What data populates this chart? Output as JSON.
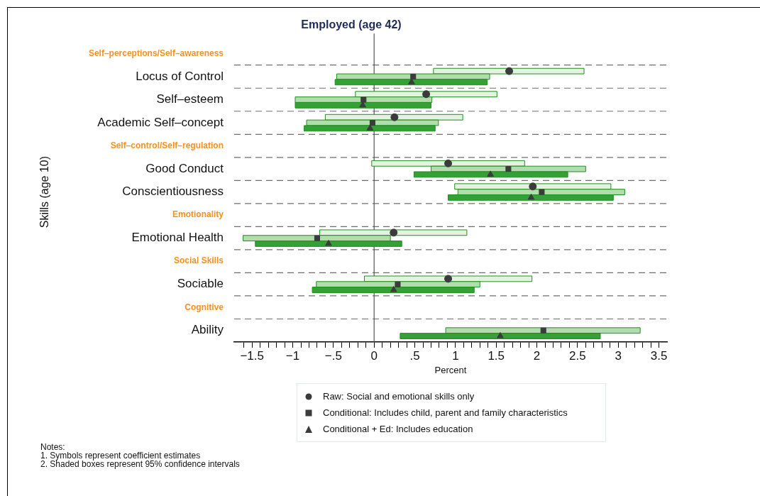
{
  "chart_data": {
    "type": "scatter",
    "orientation": "horizontal",
    "title": "Employed (age 42)",
    "xlabel": "Percent",
    "ylabel": "Skills (age 10)",
    "categories": [
      "Self–perceptions/Self–awareness",
      "Locus of Control",
      "Self–esteem",
      "Academic Self–concept",
      "Self–control/Self–regulation",
      "Good Conduct",
      "Conscientiousness",
      "Emotionality",
      "Emotional Health",
      "Social Skills",
      "Sociable",
      "Cognitive",
      "Ability"
    ],
    "series": [
      {
        "type": "bar",
        "color": "#e4f3e0",
        "base": [
          null,
          0.73,
          -0.23,
          -0.6,
          null,
          -0.03,
          0.99,
          null,
          -0.67,
          null,
          -0.12,
          null,
          null
        ],
        "values": [
          null,
          1.85,
          1.74,
          1.69,
          null,
          1.88,
          1.92,
          null,
          1.81,
          null,
          2.06,
          null,
          null
        ]
      },
      {
        "type": "bar",
        "color": "#b3dcae",
        "base": [
          null,
          -0.46,
          -0.97,
          -0.83,
          null,
          0.7,
          1.03,
          null,
          -1.61,
          null,
          -0.71,
          null,
          0.88
        ],
        "values": [
          null,
          1.88,
          1.68,
          1.62,
          null,
          1.9,
          2.05,
          null,
          1.81,
          null,
          2.01,
          null,
          2.39
        ]
      },
      {
        "type": "bar",
        "color": "#35a035",
        "base": [
          null,
          -0.48,
          -0.97,
          -0.86,
          null,
          0.49,
          0.91,
          null,
          -1.46,
          null,
          -0.76,
          null,
          0.32
        ],
        "values": [
          null,
          1.87,
          1.67,
          1.61,
          null,
          1.89,
          2.03,
          null,
          1.8,
          null,
          1.99,
          null,
          2.46
        ]
      },
      {
        "name": "Raw: Social and emotional skills only",
        "marker": "circle",
        "color": "#3b3b3b",
        "values": [
          null,
          1.66,
          0.64,
          0.25,
          null,
          0.91,
          1.95,
          null,
          0.24,
          null,
          0.91,
          null,
          null
        ]
      },
      {
        "name": "Conditional: Includes child, parent and family characteristics",
        "marker": "square",
        "color": "#3b3b3b",
        "values": [
          null,
          0.48,
          -0.13,
          -0.02,
          null,
          1.65,
          2.06,
          null,
          -0.7,
          null,
          0.29,
          null,
          2.08
        ]
      },
      {
        "name": "Conditional + Ed: Includes education",
        "marker": "triangle",
        "color": "#3b3b3b",
        "values": [
          null,
          0.46,
          -0.14,
          -0.05,
          null,
          1.43,
          1.93,
          null,
          -0.56,
          null,
          0.24,
          null,
          1.55
        ]
      }
    ],
    "xlim": [
      -1.72,
      3.6
    ],
    "xticks": [
      {
        "value": -1.6,
        "label": null
      },
      {
        "value": -1.5,
        "label": "−1.5"
      },
      {
        "value": -1.4,
        "label": null
      },
      {
        "value": -1.3,
        "label": null
      },
      {
        "value": -1.2,
        "label": null
      },
      {
        "value": -1.1,
        "label": null
      },
      {
        "value": -1,
        "label": "−1"
      },
      {
        "value": -0.9,
        "label": null
      },
      {
        "value": -0.8,
        "label": null
      },
      {
        "value": -0.7,
        "label": null
      },
      {
        "value": -0.6,
        "label": null
      },
      {
        "value": -0.5,
        "label": "−.5"
      },
      {
        "value": -0.4,
        "label": null
      },
      {
        "value": -0.3,
        "label": null
      },
      {
        "value": -0.2,
        "label": null
      },
      {
        "value": -0.1,
        "label": null
      },
      0,
      {
        "value": 0.1,
        "label": null
      },
      {
        "value": 0.2,
        "label": null
      },
      {
        "value": 0.3,
        "label": null
      },
      {
        "value": 0.4,
        "label": null
      },
      {
        "value": 0.5,
        "label": ".5"
      },
      {
        "value": 0.6,
        "label": null
      },
      {
        "value": 0.7,
        "label": null
      },
      {
        "value": 0.8,
        "label": null
      },
      {
        "value": 0.9,
        "label": null
      },
      1,
      {
        "value": 1.1,
        "label": null
      },
      {
        "value": 1.2,
        "label": null
      },
      {
        "value": 1.3,
        "label": null
      },
      {
        "value": 1.4,
        "label": null
      },
      1.5,
      {
        "value": 1.6,
        "label": null
      },
      {
        "value": 1.7,
        "label": null
      },
      {
        "value": 1.8,
        "label": null
      },
      {
        "value": 1.9,
        "label": null
      },
      2,
      {
        "value": 2.1,
        "label": null
      },
      {
        "value": 2.2,
        "label": null
      },
      {
        "value": 2.3,
        "label": null
      },
      {
        "value": 2.4,
        "label": null
      },
      2.5,
      {
        "value": 2.6,
        "label": null
      },
      {
        "value": 2.7,
        "label": null
      },
      {
        "value": 2.8,
        "label": null
      },
      {
        "value": 2.9,
        "label": null
      },
      3,
      {
        "value": 3.1,
        "label": null
      },
      {
        "value": 3.2,
        "label": null
      },
      {
        "value": 3.3,
        "label": null
      },
      {
        "value": 3.4,
        "label": null
      },
      3.5
    ],
    "ref_lines": [
      {
        "axis": "x",
        "value": 0,
        "color": "#555555"
      }
    ],
    "grid": "y",
    "legend": "bottom",
    "annotations": [
      "Notes:",
      "1. Symbols represent coefficient estimates",
      "2. Shaded boxes represent 95% confidence intervals"
    ]
  }
}
